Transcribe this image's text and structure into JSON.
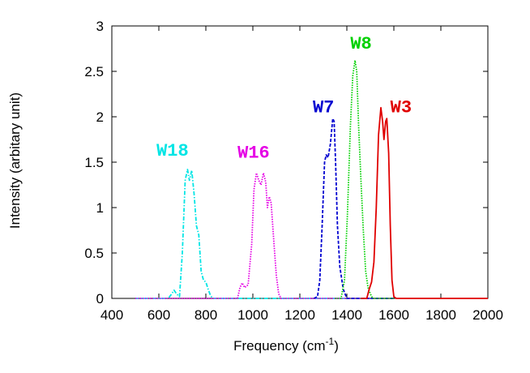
{
  "chart_data": {
    "type": "line",
    "title": "",
    "xlabel": "Frequency (cm",
    "xlabel_sup": "-1",
    "xlabel_end": ")",
    "ylabel": "Intensity (arbitary unit)",
    "xlim": [
      400,
      2000
    ],
    "ylim": [
      0,
      3
    ],
    "x_ticks": [
      "400",
      "600",
      "800",
      "1000",
      "1200",
      "1400",
      "1600",
      "1800",
      "2000"
    ],
    "y_ticks": [
      "0",
      "0.5",
      "1",
      "1.5",
      "2",
      "2.5",
      "3"
    ],
    "grid": false,
    "legend": "none",
    "series": [
      {
        "name": "W18",
        "color": "#00e5e5",
        "dash": "dashdot",
        "points": [
          [
            500,
            0
          ],
          [
            640,
            0
          ],
          [
            655,
            0.05
          ],
          [
            665,
            0.09
          ],
          [
            675,
            0.05
          ],
          [
            688,
            0.02
          ],
          [
            700,
            0.5
          ],
          [
            712,
            1.3
          ],
          [
            722,
            1.42
          ],
          [
            730,
            1.3
          ],
          [
            740,
            1.41
          ],
          [
            750,
            1.15
          ],
          [
            760,
            0.8
          ],
          [
            770,
            0.7
          ],
          [
            780,
            0.3
          ],
          [
            790,
            0.2
          ],
          [
            800,
            0.18
          ],
          [
            810,
            0.1
          ],
          [
            820,
            0.03
          ],
          [
            830,
            0
          ],
          [
            1400,
            0
          ]
        ]
      },
      {
        "name": "W16",
        "color": "#e500e5",
        "dash": "dotted",
        "points": [
          [
            500,
            0
          ],
          [
            935,
            0
          ],
          [
            945,
            0.12
          ],
          [
            955,
            0.17
          ],
          [
            965,
            0.12
          ],
          [
            980,
            0.15
          ],
          [
            995,
            0.6
          ],
          [
            1005,
            1.2
          ],
          [
            1015,
            1.38
          ],
          [
            1025,
            1.3
          ],
          [
            1035,
            1.25
          ],
          [
            1045,
            1.38
          ],
          [
            1055,
            1.28
          ],
          [
            1062,
            1.0
          ],
          [
            1070,
            1.12
          ],
          [
            1078,
            1.05
          ],
          [
            1090,
            0.6
          ],
          [
            1100,
            0.25
          ],
          [
            1110,
            0.05
          ],
          [
            1120,
            0
          ],
          [
            1600,
            0
          ]
        ]
      },
      {
        "name": "W7",
        "color": "#0000d0",
        "dash": "dashed",
        "points": [
          [
            1260,
            0
          ],
          [
            1275,
            0.02
          ],
          [
            1285,
            0.2
          ],
          [
            1295,
            0.8
          ],
          [
            1305,
            1.5
          ],
          [
            1312,
            1.58
          ],
          [
            1320,
            1.55
          ],
          [
            1330,
            1.7
          ],
          [
            1340,
            1.98
          ],
          [
            1346,
            1.95
          ],
          [
            1352,
            1.5
          ],
          [
            1360,
            0.8
          ],
          [
            1370,
            0.35
          ],
          [
            1385,
            0.1
          ],
          [
            1400,
            0
          ],
          [
            1600,
            0
          ]
        ]
      },
      {
        "name": "W8",
        "color": "#00d000",
        "dash": "dotted",
        "points": [
          [
            1350,
            0
          ],
          [
            1375,
            0
          ],
          [
            1390,
            0.2
          ],
          [
            1402,
            0.9
          ],
          [
            1415,
            1.9
          ],
          [
            1425,
            2.45
          ],
          [
            1435,
            2.62
          ],
          [
            1442,
            2.5
          ],
          [
            1450,
            1.9
          ],
          [
            1460,
            1.3
          ],
          [
            1470,
            0.75
          ],
          [
            1480,
            0.3
          ],
          [
            1490,
            0.12
          ],
          [
            1500,
            0.05
          ],
          [
            1510,
            0
          ],
          [
            1600,
            0
          ]
        ]
      },
      {
        "name": "W3",
        "color": "#e00000",
        "dash": "solid",
        "points": [
          [
            1460,
            0
          ],
          [
            1485,
            0
          ],
          [
            1495,
            0.1
          ],
          [
            1505,
            0.18
          ],
          [
            1515,
            0.4
          ],
          [
            1525,
            1.0
          ],
          [
            1535,
            1.8
          ],
          [
            1545,
            2.1
          ],
          [
            1552,
            1.95
          ],
          [
            1558,
            1.75
          ],
          [
            1565,
            1.95
          ],
          [
            1570,
            1.98
          ],
          [
            1578,
            1.6
          ],
          [
            1585,
            0.8
          ],
          [
            1592,
            0.2
          ],
          [
            1600,
            0.02
          ],
          [
            1610,
            0
          ],
          [
            2000,
            0
          ]
        ]
      }
    ],
    "annotations": [
      {
        "text": "W18",
        "x": 590,
        "y": 1.57,
        "color": "#00e5e5"
      },
      {
        "text": "W16",
        "x": 935,
        "y": 1.55,
        "color": "#e500e5"
      },
      {
        "text": "W7",
        "x": 1255,
        "y": 2.05,
        "color": "#0000d0"
      },
      {
        "text": "W8",
        "x": 1415,
        "y": 2.75,
        "color": "#00d000"
      },
      {
        "text": "W3",
        "x": 1585,
        "y": 2.05,
        "color": "#e00000"
      }
    ]
  }
}
